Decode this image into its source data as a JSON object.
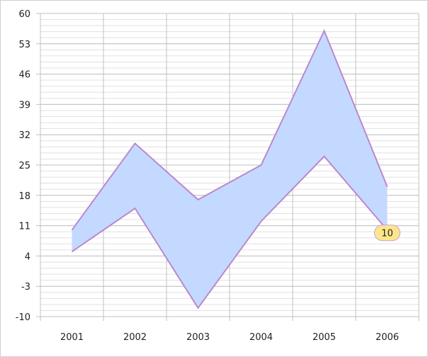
{
  "chart_data": {
    "type": "area",
    "subtype": "range-area",
    "title": "",
    "xlabel": "",
    "ylabel": "",
    "categories": [
      "2001",
      "2002",
      "2003",
      "2004",
      "2005",
      "2006"
    ],
    "series": [
      {
        "role": "high",
        "values": [
          10,
          30,
          17,
          25,
          56,
          20
        ]
      },
      {
        "role": "low",
        "values": [
          5,
          15,
          -8,
          12,
          27,
          10
        ]
      }
    ],
    "ylim": [
      -10,
      60
    ],
    "yticks": [
      -10,
      -3,
      4,
      11,
      18,
      25,
      32,
      39,
      46,
      53,
      60
    ],
    "minor_ticks_per_major": 5,
    "grid": true,
    "legend": "none",
    "data_labels": [
      {
        "category": "2006",
        "series": "low",
        "text": "10"
      }
    ],
    "colors": {
      "fill": "#c4d9ff",
      "line": "#bb88cc",
      "label_bg": "#fde68a",
      "label_border": "#c9a0d8",
      "grid_major": "#c0c0c0",
      "grid_minor": "#e0e0e0"
    }
  }
}
